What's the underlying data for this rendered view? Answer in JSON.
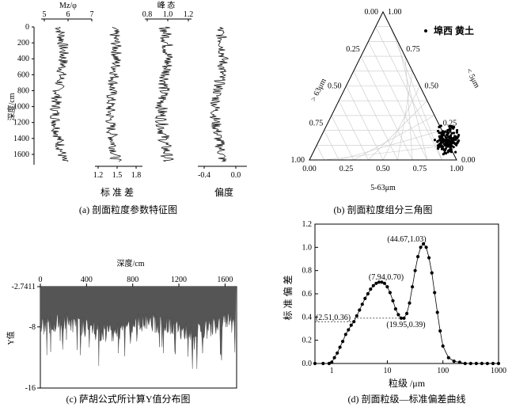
{
  "captions": {
    "a": "(a) 剖面粒度参数特征图",
    "b": "(b) 剖面粒度组分三角图",
    "c": "(c) 萨胡公式所计算Y值分布图",
    "d": "(d) 剖面粒级—标准偏差曲线"
  },
  "panel_a": {
    "ylabel": "深度/cm",
    "depth_ticks": [
      "0",
      "200",
      "400",
      "600",
      "800",
      "1000",
      "1200",
      "1400",
      "1600"
    ],
    "mz": {
      "label": "Mz/φ",
      "ticks": [
        "5",
        "6",
        "7"
      ]
    },
    "kurtosis": {
      "label": "峰 态",
      "ticks": [
        "0.8",
        "1.0",
        "1.2"
      ]
    },
    "sorting": {
      "label": "标 准 差",
      "ticks": [
        "1.2",
        "1.5",
        "1.8"
      ]
    },
    "skewness": {
      "label": "偏度",
      "ticks": [
        "-0.4",
        "0.0"
      ]
    }
  },
  "panel_b": {
    "legend": "埠西 黄土",
    "left_axis_label": "> 63μm",
    "right_axis_label": "< 5μm",
    "bottom_axis_label": "5-63μm",
    "bottom_ticks": [
      "0.00",
      "0.25",
      "0.50",
      "0.75",
      "1.00"
    ],
    "left_ticks": [
      "1.00",
      "0.75",
      "0.50",
      "0.25",
      "0.00"
    ],
    "right_ticks": [
      "1.00",
      "0.75",
      "0.50",
      "0.25",
      "0.00"
    ]
  },
  "panel_c": {
    "xlabel": "深度/cm",
    "ylabel": "Y值",
    "x_ticks": [
      "0",
      "400",
      "800",
      "1200",
      "1600"
    ],
    "y_ticks": [
      "-2.7411",
      "-8",
      "-16"
    ]
  },
  "panel_d": {
    "xlabel": "粒级 /μm",
    "ylabel": "标 准 偏 差",
    "x_ticks": [
      "1",
      "10",
      "100",
      "1000"
    ],
    "y_ticks": [
      "0.0",
      "0.2",
      "0.4",
      "0.6",
      "0.8",
      "1.0",
      "1.2"
    ],
    "annotations": [
      "(44.67,1.03)",
      "(7.94,0.70)",
      "(2.51,0.36)",
      "(19.95,0.39)"
    ]
  },
  "chart_data": [
    {
      "type": "scatter",
      "legend": "埠西 黄土",
      "xlabel": "5-63μm",
      "points": [
        [
          0.87,
          0.17,
          0.83
        ],
        [
          0.88,
          0.18,
          0.85
        ],
        [
          0.86,
          0.15,
          0.82
        ],
        [
          0.89,
          0.16,
          0.86
        ],
        [
          0.9,
          0.19,
          0.87
        ],
        [
          0.87,
          0.2,
          0.84
        ],
        [
          0.91,
          0.17,
          0.89
        ],
        [
          0.88,
          0.14,
          0.86
        ],
        [
          0.86,
          0.22,
          0.82
        ],
        [
          0.89,
          0.21,
          0.85
        ],
        [
          0.92,
          0.18,
          0.9
        ],
        [
          0.87,
          0.16,
          0.85
        ],
        [
          0.9,
          0.15,
          0.88
        ],
        [
          0.88,
          0.24,
          0.83
        ],
        [
          0.85,
          0.19,
          0.82
        ],
        [
          0.91,
          0.2,
          0.88
        ],
        [
          0.89,
          0.13,
          0.88
        ],
        [
          0.87,
          0.25,
          0.82
        ],
        [
          0.9,
          0.22,
          0.86
        ],
        [
          0.88,
          0.17,
          0.86
        ]
      ]
    },
    {
      "type": "line",
      "xlabel": "粒级 /μm",
      "ylabel": "标 准 偏 差",
      "xscale": "log",
      "x": [
        0.5,
        0.7,
        0.9,
        1.0,
        1.12,
        1.26,
        1.41,
        1.58,
        1.78,
        2.0,
        2.24,
        2.51,
        2.82,
        3.16,
        3.55,
        3.98,
        4.47,
        5.01,
        5.62,
        6.31,
        7.08,
        7.94,
        8.91,
        10.0,
        11.2,
        12.6,
        14.1,
        15.8,
        17.8,
        19.95,
        22.4,
        25.1,
        28.2,
        31.6,
        35.5,
        39.8,
        44.67,
        50.1,
        56.2,
        63.1,
        70.8,
        79.4,
        89.1,
        100,
        126,
        158,
        200,
        251,
        316,
        398,
        501,
        631,
        794,
        1000
      ],
      "y": [
        0.0,
        0.0,
        0.0,
        0.01,
        0.05,
        0.09,
        0.14,
        0.19,
        0.25,
        0.29,
        0.33,
        0.36,
        0.41,
        0.46,
        0.51,
        0.56,
        0.6,
        0.64,
        0.67,
        0.69,
        0.7,
        0.7,
        0.69,
        0.66,
        0.61,
        0.54,
        0.47,
        0.42,
        0.39,
        0.39,
        0.43,
        0.52,
        0.66,
        0.8,
        0.92,
        1.0,
        1.03,
        1.0,
        0.91,
        0.78,
        0.61,
        0.44,
        0.28,
        0.15,
        0.05,
        0.02,
        0.01,
        0.0,
        0.0,
        0.0,
        0.0,
        0.0,
        0.0,
        0.0
      ],
      "xlim": [
        0.5,
        1000
      ],
      "ylim": [
        0,
        1.2
      ]
    }
  ]
}
